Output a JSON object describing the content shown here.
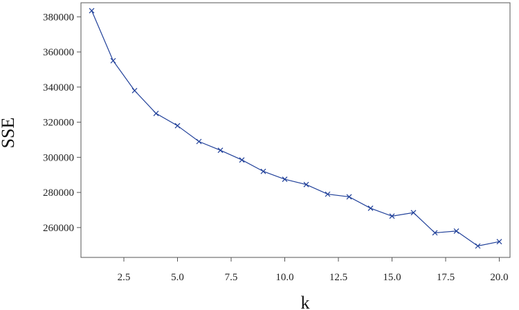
{
  "chart_data": {
    "type": "line",
    "title": "",
    "xlabel": "k",
    "ylabel": "SSE",
    "xlim": [
      0.5,
      20.5
    ],
    "ylim": [
      243000,
      388000
    ],
    "x_ticks": [
      2.5,
      5.0,
      7.5,
      10.0,
      12.5,
      15.0,
      17.5,
      20.0
    ],
    "x_tick_labels": [
      "2.5",
      "5.0",
      "7.5",
      "10.0",
      "12.5",
      "15.0",
      "17.5",
      "20.0"
    ],
    "y_ticks": [
      260000,
      280000,
      300000,
      320000,
      340000,
      360000,
      380000
    ],
    "y_tick_labels": [
      "260000",
      "280000",
      "300000",
      "320000",
      "340000",
      "360000",
      "380000"
    ],
    "grid": false,
    "marker": "x",
    "line_color": "#1f3f99",
    "series": [
      {
        "x": [
          1,
          2,
          3,
          4,
          5,
          6,
          7,
          8,
          9,
          10,
          11,
          12,
          13,
          14,
          15,
          16,
          17,
          18,
          19,
          20
        ],
        "values": [
          383500,
          355000,
          338000,
          325000,
          318000,
          309000,
          304000,
          298500,
          292000,
          287500,
          284500,
          279000,
          277500,
          271000,
          266500,
          268500,
          257000,
          258000,
          249500,
          252000
        ]
      }
    ]
  }
}
